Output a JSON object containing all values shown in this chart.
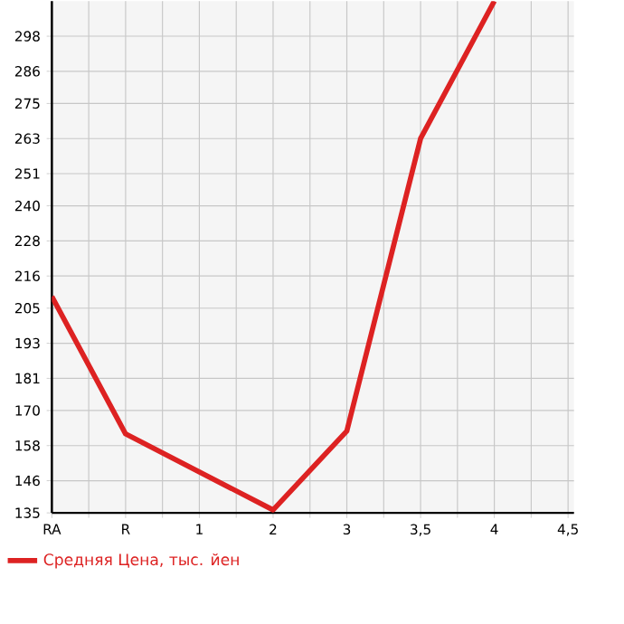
{
  "chart_data": {
    "type": "line",
    "categories": [
      "RA",
      "R",
      "1",
      "2",
      "3",
      "3,5",
      "4",
      "4,5"
    ],
    "series": [
      {
        "name": "Средняя Цена, тыс. йен",
        "color": "#dd2222",
        "values": [
          209,
          162,
          149,
          136,
          163,
          263,
          310,
          null
        ]
      }
    ],
    "ylim": [
      135,
      310
    ],
    "yticks": [
      135,
      146,
      158,
      170,
      181,
      193,
      205,
      216,
      228,
      240,
      251,
      263,
      275,
      286,
      298
    ],
    "grid": true,
    "legend": "bottom",
    "marker": "none",
    "line_style": "solid"
  }
}
